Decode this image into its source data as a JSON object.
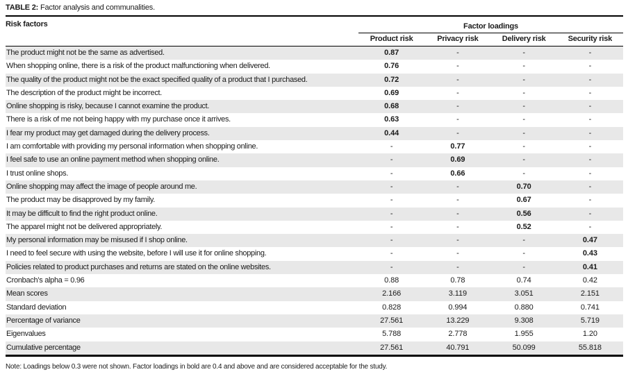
{
  "title": {
    "label": "TABLE 2:",
    "text": "Factor analysis and communalities."
  },
  "header": {
    "row_label": "Risk factors",
    "group_label": "Factor loadings",
    "columns": [
      "Product risk",
      "Privacy risk",
      "Delivery risk",
      "Security risk"
    ]
  },
  "rows": [
    {
      "label": "The product might not be the same as advertised.",
      "values": [
        "0.87",
        "-",
        "-",
        "-"
      ],
      "bold_values": true
    },
    {
      "label": "When shopping online, there is a risk of the product malfunctioning when delivered.",
      "values": [
        "0.76",
        "-",
        "-",
        "-"
      ],
      "bold_values": true
    },
    {
      "label": "The quality of the product might not be the exact specified quality of a product that I purchased.",
      "values": [
        "0.72",
        "-",
        "-",
        "-"
      ],
      "bold_values": true
    },
    {
      "label": "The description of the product might be incorrect.",
      "values": [
        "0.69",
        "-",
        "-",
        "-"
      ],
      "bold_values": true
    },
    {
      "label": "Online shopping is risky, because I cannot examine the product.",
      "values": [
        "0.68",
        "-",
        "-",
        "-"
      ],
      "bold_values": true
    },
    {
      "label": "There is a risk of me not being happy with my purchase once it arrives.",
      "values": [
        "0.63",
        "-",
        "-",
        "-"
      ],
      "bold_values": true
    },
    {
      "label": "I fear my product may get damaged during the delivery process.",
      "values": [
        "0.44",
        "-",
        "-",
        "-"
      ],
      "bold_values": true
    },
    {
      "label": "I am comfortable with providing my personal information when shopping online.",
      "values": [
        "-",
        "0.77",
        "-",
        "-"
      ],
      "bold_values": true
    },
    {
      "label": "I feel safe to use an online payment method when shopping online.",
      "values": [
        "-",
        "0.69",
        "-",
        "-"
      ],
      "bold_values": true
    },
    {
      "label": "I trust online shops.",
      "values": [
        "-",
        "0.66",
        "-",
        "-"
      ],
      "bold_values": true
    },
    {
      "label": "Online shopping may affect the image of people around me.",
      "values": [
        "-",
        "-",
        "0.70",
        "-"
      ],
      "bold_values": true
    },
    {
      "label": "The product may be disapproved by my family.",
      "values": [
        "-",
        "-",
        "0.67",
        "-"
      ],
      "bold_values": true
    },
    {
      "label": "It may be difficult to find the right product online.",
      "values": [
        "-",
        "-",
        "0.56",
        "-"
      ],
      "bold_values": true
    },
    {
      "label": "The apparel might not be delivered appropriately.",
      "values": [
        "-",
        "-",
        "0.52",
        "-"
      ],
      "bold_values": true
    },
    {
      "label": "My personal information may be misused if I shop online.",
      "values": [
        "-",
        "-",
        "-",
        "0.47"
      ],
      "bold_values": true
    },
    {
      "label": "I need to feel secure with using the website, before I will use it for online shopping.",
      "values": [
        "-",
        "-",
        "-",
        "0.43"
      ],
      "bold_values": true
    },
    {
      "label": "Policies related to product purchases and returns are stated on the online websites.",
      "values": [
        "-",
        "-",
        "-",
        "0.41"
      ],
      "bold_values": true
    },
    {
      "label": "Cronbach’s alpha = 0.96",
      "values": [
        "0.88",
        "0.78",
        "0.74",
        "0.42"
      ],
      "bold_values": false
    },
    {
      "label": "Mean scores",
      "values": [
        "2.166",
        "3.119",
        "3.051",
        "2.151"
      ],
      "bold_values": false
    },
    {
      "label": "Standard deviation",
      "values": [
        "0.828",
        "0.994",
        "0.880",
        "0.741"
      ],
      "bold_values": false
    },
    {
      "label": "Percentage of variance",
      "values": [
        "27.561",
        "13.229",
        "9.308",
        "5.719"
      ],
      "bold_values": false
    },
    {
      "label": "Eigenvalues",
      "values": [
        "5.788",
        "2.778",
        "1.955",
        "1.20"
      ],
      "bold_values": false
    },
    {
      "label": "Cumulative percentage",
      "values": [
        "27.561",
        "40.791",
        "50.099",
        "55.818"
      ],
      "bold_values": false
    }
  ],
  "note": "Note: Loadings below 0.3 were not shown. Factor loadings in bold are 0.4 and above and are considered acceptable for the study.",
  "colors": {
    "row_shade": "#e8e8e8",
    "text": "#1a1a1a",
    "border": "#000000"
  }
}
